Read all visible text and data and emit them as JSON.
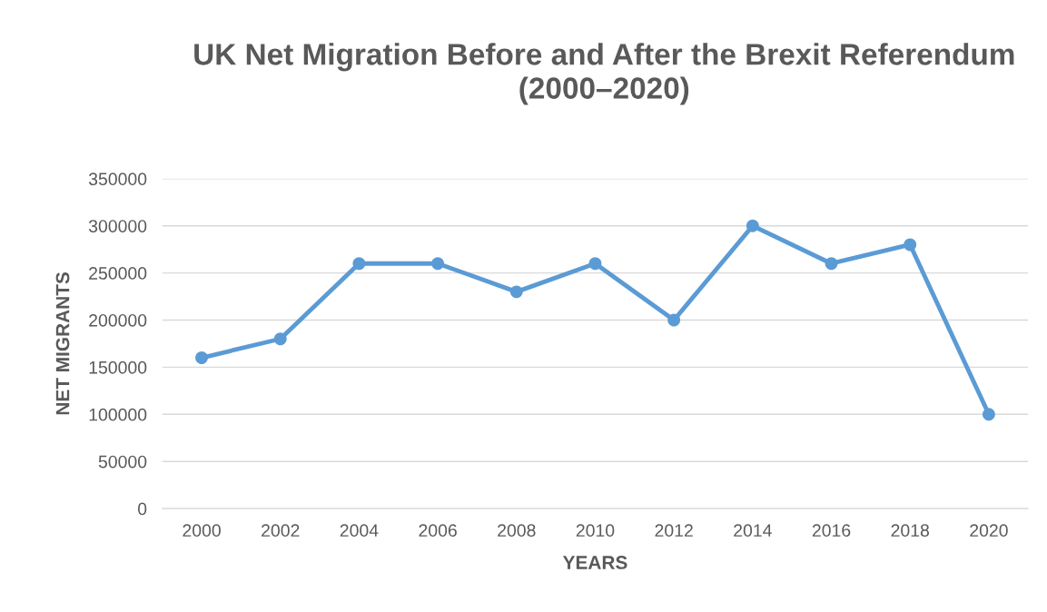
{
  "chart_data": {
    "type": "line",
    "title": "UK Net Migration Before and After the Brexit Referendum\n(2000–2020)",
    "xlabel": "YEARS",
    "ylabel": "NET MIGRANTS",
    "categories": [
      "2000",
      "2002",
      "2004",
      "2006",
      "2008",
      "2010",
      "2012",
      "2014",
      "2016",
      "2018",
      "2020"
    ],
    "series": [
      {
        "color": "#5b9bd5",
        "values": [
          160000,
          180000,
          260000,
          260000,
          230000,
          260000,
          200000,
          300000,
          260000,
          280000,
          100000
        ]
      }
    ],
    "ylim": [
      0,
      350000
    ],
    "yticks": [
      0,
      50000,
      100000,
      150000,
      200000,
      250000,
      300000,
      350000
    ],
    "grid": "y",
    "legend": false,
    "marker": "circle",
    "line_style": "solid"
  }
}
